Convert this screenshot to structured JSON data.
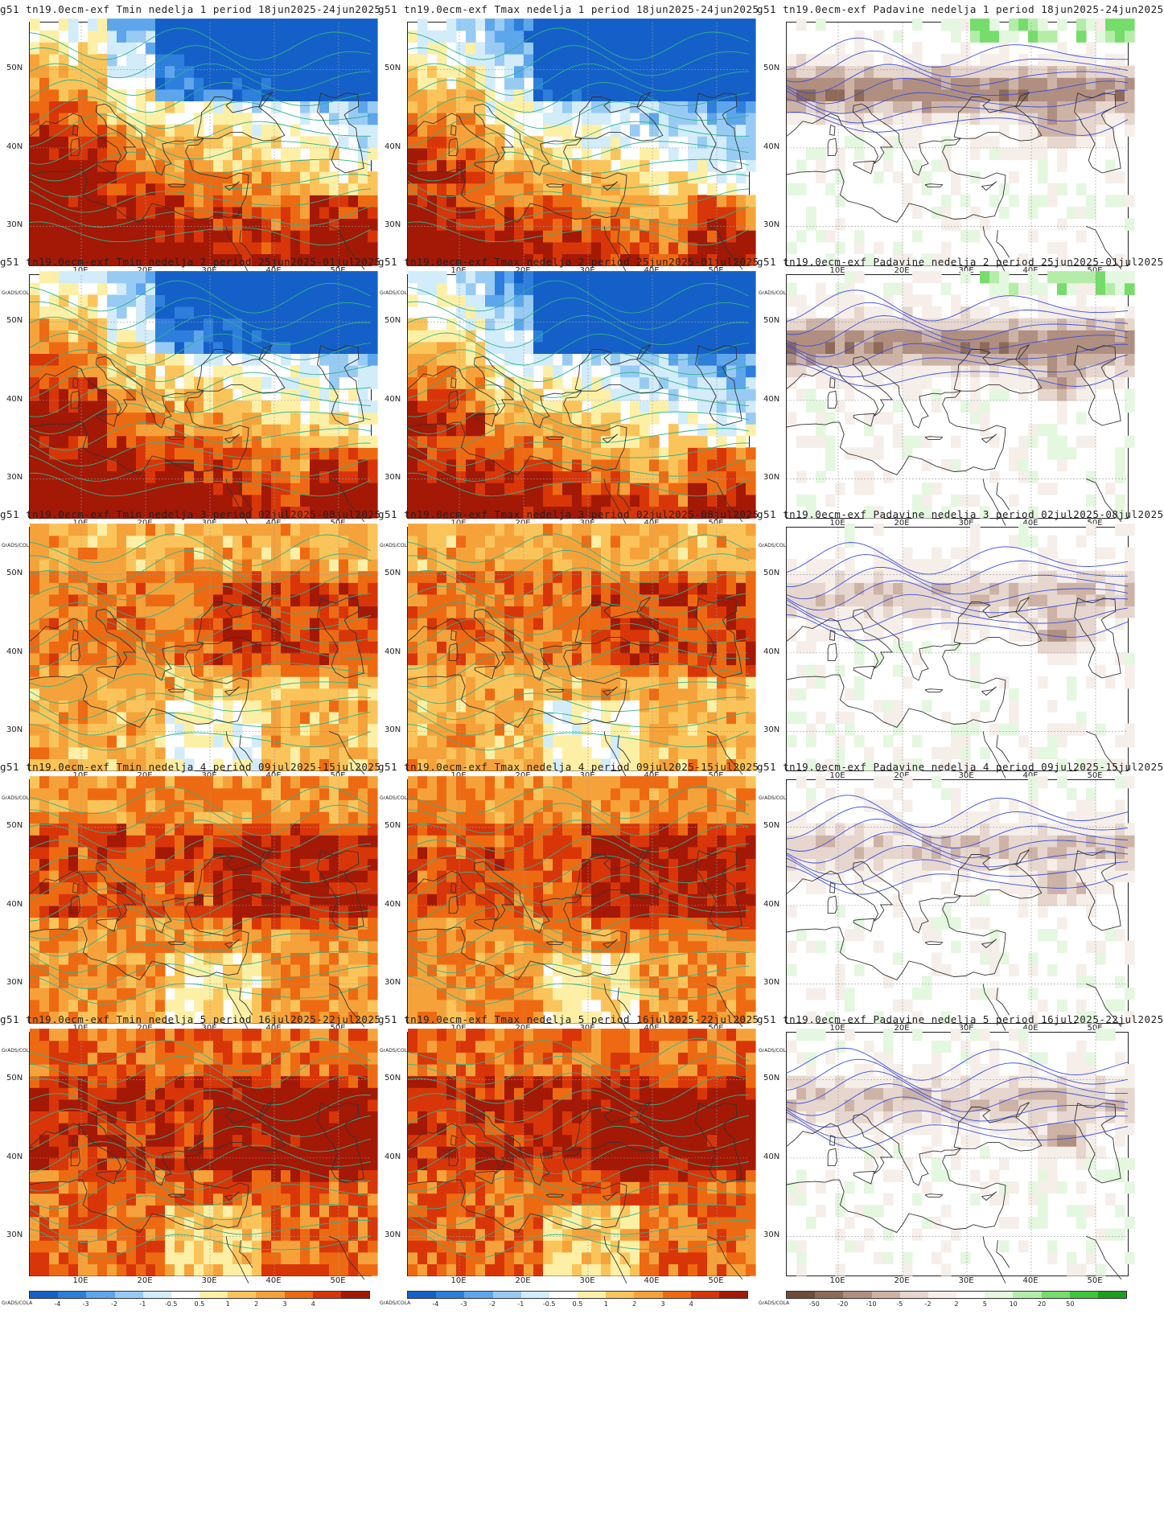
{
  "lat_labels": [
    "50N",
    "40N",
    "30N"
  ],
  "lon_labels": [
    "10E",
    "20E",
    "30E",
    "40E",
    "50E"
  ],
  "colorbar_source": "GrADS/COLA",
  "temp_scale": {
    "labels": [
      "-4",
      "-3",
      "-2",
      "-1",
      "-0.5",
      "0.5",
      "1",
      "2",
      "3",
      "4"
    ],
    "colors": [
      "#1560c8",
      "#2e7fdc",
      "#5ea6ec",
      "#98cbf4",
      "#d2ecfa",
      "#ffffff",
      "#fdf0a6",
      "#fbc45a",
      "#f6a23a",
      "#ee6a12",
      "#d83608",
      "#a41806"
    ]
  },
  "precip_scale": {
    "labels": [
      "-50",
      "-20",
      "-10",
      "-5",
      "-2",
      "2",
      "5",
      "10",
      "20",
      "50"
    ],
    "colors": [
      "#6e4b3a",
      "#8e6a58",
      "#b08f80",
      "#cdb3a6",
      "#e6d6cd",
      "#f6eee9",
      "#ffffff",
      "#e4f7df",
      "#b4eda8",
      "#76dc6c",
      "#3cc63a",
      "#1e9e1e"
    ]
  },
  "panels": [
    {
      "title": "g51  tn19.0ecm-exf  Tmin  nedelja  1  period  18jun2025-24jun2025",
      "kind": "tmin",
      "week": 1
    },
    {
      "title": "g51  tn19.0ecm-exf  Tmax  nedelja  1  period  18jun2025-24jun2025",
      "kind": "tmax",
      "week": 1
    },
    {
      "title": "g51  tn19.0ecm-exf  Padavine  nedelja  1  period  18jun2025-24jun2025",
      "kind": "prec",
      "week": 1
    },
    {
      "title": "g51  tn19.0ecm-exf  Tmin  nedelja  2  period  25jun2025-01jul2025",
      "kind": "tmin",
      "week": 2
    },
    {
      "title": "g51  tn19.0ecm-exf  Tmax  nedelja  2  period  25jun2025-01jul2025",
      "kind": "tmax",
      "week": 2
    },
    {
      "title": "g51  tn19.0ecm-exf  Padavine  nedelja  2  period  25jun2025-01jul2025",
      "kind": "prec",
      "week": 2
    },
    {
      "title": "g51  tn19.0ecm-exf  Tmin  nedelja  3  period  02jul2025-08jul2025",
      "kind": "tmin",
      "week": 3
    },
    {
      "title": "g51  tn19.0ecm-exf  Tmax  nedelja  3  period  02jul2025-08jul2025",
      "kind": "tmax",
      "week": 3
    },
    {
      "title": "g51  tn19.0ecm-exf  Padavine  nedelja  3  period  02jul2025-08jul2025",
      "kind": "prec",
      "week": 3
    },
    {
      "title": "g51  tn19.0ecm-exf  Tmin  nedelja  4  period  09jul2025-15jul2025",
      "kind": "tmin",
      "week": 4
    },
    {
      "title": "g51  tn19.0ecm-exf  Tmax  nedelja  4  period  09jul2025-15jul2025",
      "kind": "tmax",
      "week": 4
    },
    {
      "title": "g51  tn19.0ecm-exf  Padavine  nedelja  4  period  09jul2025-15jul2025",
      "kind": "prec",
      "week": 4
    },
    {
      "title": "g51  tn19.0ecm-exf  Tmin  nedelja  5  period  16jul2025-22jul2025",
      "kind": "tmin",
      "week": 5
    },
    {
      "title": "g51  tn19.0ecm-exf  Tmax  nedelja  5  period  16jul2025-22jul2025",
      "kind": "tmax",
      "week": 5
    },
    {
      "title": "g51  tn19.0ecm-exf  Padavine  nedelja  5  period  16jul2025-22jul2025",
      "kind": "prec",
      "week": 5
    }
  ]
}
